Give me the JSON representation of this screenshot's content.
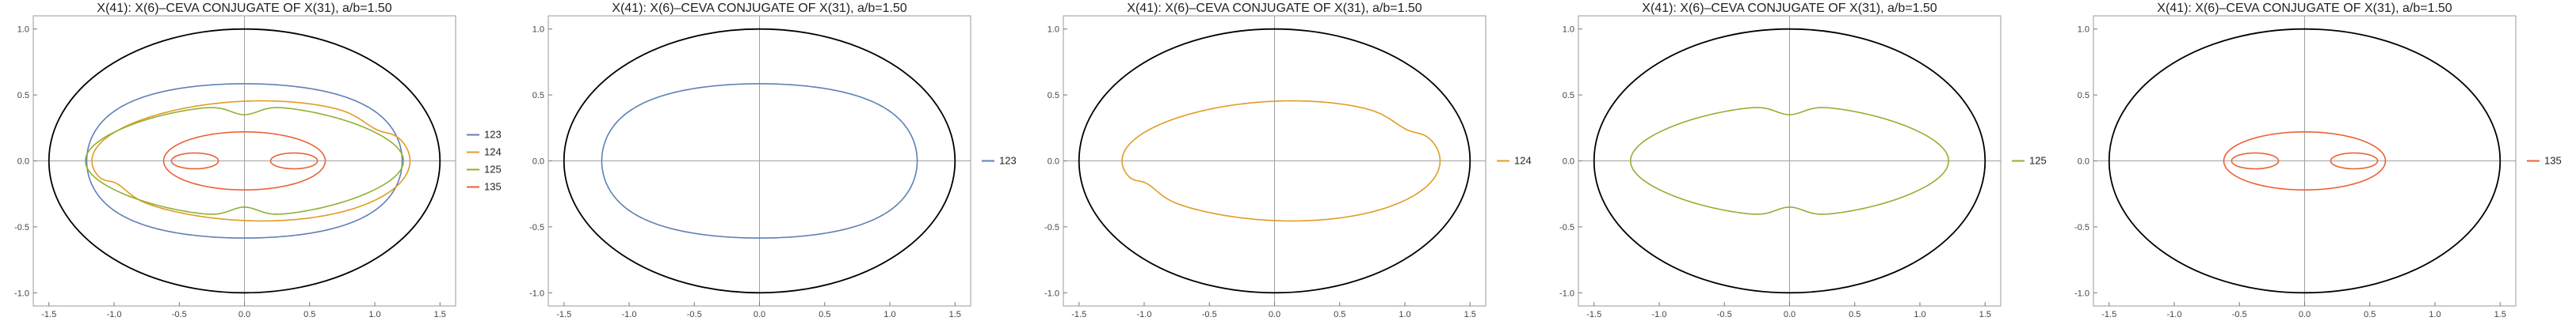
{
  "chart_data": [
    {
      "type": "line",
      "title": "X(41): X(6)–CEVA CONJUGATE OF X(31), a/b=1.50",
      "xlim": [
        -1.62,
        1.62
      ],
      "ylim": [
        -1.1,
        1.1
      ],
      "xticks": [
        -1.5,
        -1.0,
        -0.5,
        0.0,
        0.5,
        1.0,
        1.5
      ],
      "xtick_labels": [
        "-1.5",
        "-1.0",
        "-0.5",
        "0.0",
        "0.5",
        "1.0",
        "1.5"
      ],
      "yticks": [
        -1.0,
        -0.5,
        0.0,
        0.5,
        1.0
      ],
      "ytick_labels": [
        "-1.0",
        "-0.5",
        "0.0",
        "0.5",
        "1.0"
      ],
      "ellipse": {
        "a": 1.5,
        "b": 1.0,
        "color": "#000000"
      },
      "legend_position": "right",
      "series": [
        {
          "name": "123",
          "color": "#5e81b5"
        },
        {
          "name": "124",
          "color": "#e19c24"
        },
        {
          "name": "125",
          "color": "#8fb032"
        },
        {
          "name": "135",
          "color": "#eb6235"
        }
      ]
    },
    {
      "type": "line",
      "title": "X(41): X(6)–CEVA CONJUGATE OF X(31), a/b=1.50",
      "xlim": [
        -1.62,
        1.62
      ],
      "ylim": [
        -1.1,
        1.1
      ],
      "xticks": [
        -1.5,
        -1.0,
        -0.5,
        0.0,
        0.5,
        1.0,
        1.5
      ],
      "xtick_labels": [
        "-1.5",
        "-1.0",
        "-0.5",
        "0.0",
        "0.5",
        "1.0",
        "1.5"
      ],
      "yticks": [
        -1.0,
        -0.5,
        0.0,
        0.5,
        1.0
      ],
      "ytick_labels": [
        "-1.0",
        "-0.5",
        "0.0",
        "0.5",
        "1.0"
      ],
      "ellipse": {
        "a": 1.5,
        "b": 1.0,
        "color": "#000000"
      },
      "legend_position": "right",
      "series": [
        {
          "name": "123",
          "color": "#5e81b5"
        }
      ]
    },
    {
      "type": "line",
      "title": "X(41): X(6)–CEVA CONJUGATE OF X(31), a/b=1.50",
      "xlim": [
        -1.62,
        1.62
      ],
      "ylim": [
        -1.1,
        1.1
      ],
      "xticks": [
        -1.5,
        -1.0,
        -0.5,
        0.0,
        0.5,
        1.0,
        1.5
      ],
      "xtick_labels": [
        "-1.5",
        "-1.0",
        "-0.5",
        "0.0",
        "0.5",
        "1.0",
        "1.5"
      ],
      "yticks": [
        -1.0,
        -0.5,
        0.0,
        0.5,
        1.0
      ],
      "ytick_labels": [
        "-1.0",
        "-0.5",
        "0.0",
        "0.5",
        "1.0"
      ],
      "ellipse": {
        "a": 1.5,
        "b": 1.0,
        "color": "#000000"
      },
      "legend_position": "right",
      "series": [
        {
          "name": "124",
          "color": "#e19c24"
        }
      ]
    },
    {
      "type": "line",
      "title": "X(41): X(6)–CEVA CONJUGATE OF X(31), a/b=1.50",
      "xlim": [
        -1.62,
        1.62
      ],
      "ylim": [
        -1.1,
        1.1
      ],
      "xticks": [
        -1.5,
        -1.0,
        -0.5,
        0.0,
        0.5,
        1.0,
        1.5
      ],
      "xtick_labels": [
        "-1.5",
        "-1.0",
        "-0.5",
        "0.0",
        "0.5",
        "1.0",
        "1.5"
      ],
      "yticks": [
        -1.0,
        -0.5,
        0.0,
        0.5,
        1.0
      ],
      "ytick_labels": [
        "-1.0",
        "-0.5",
        "0.0",
        "0.5",
        "1.0"
      ],
      "ellipse": {
        "a": 1.5,
        "b": 1.0,
        "color": "#000000"
      },
      "legend_position": "right",
      "series": [
        {
          "name": "125",
          "color": "#8fb032"
        }
      ]
    },
    {
      "type": "line",
      "title": "X(41): X(6)–CEVA CONJUGATE OF X(31), a/b=1.50",
      "xlim": [
        -1.62,
        1.62
      ],
      "ylim": [
        -1.1,
        1.1
      ],
      "xticks": [
        -1.5,
        -1.0,
        -0.5,
        0.0,
        0.5,
        1.0,
        1.5
      ],
      "xtick_labels": [
        "-1.5",
        "-1.0",
        "-0.5",
        "0.0",
        "0.5",
        "1.0",
        "1.5"
      ],
      "yticks": [
        -1.0,
        -0.5,
        0.0,
        0.5,
        1.0
      ],
      "ytick_labels": [
        "-1.0",
        "-0.5",
        "0.0",
        "0.5",
        "1.0"
      ],
      "ellipse": {
        "a": 1.5,
        "b": 1.0,
        "color": "#000000"
      },
      "legend_position": "right",
      "series": [
        {
          "name": "135",
          "color": "#eb6235"
        }
      ]
    }
  ]
}
